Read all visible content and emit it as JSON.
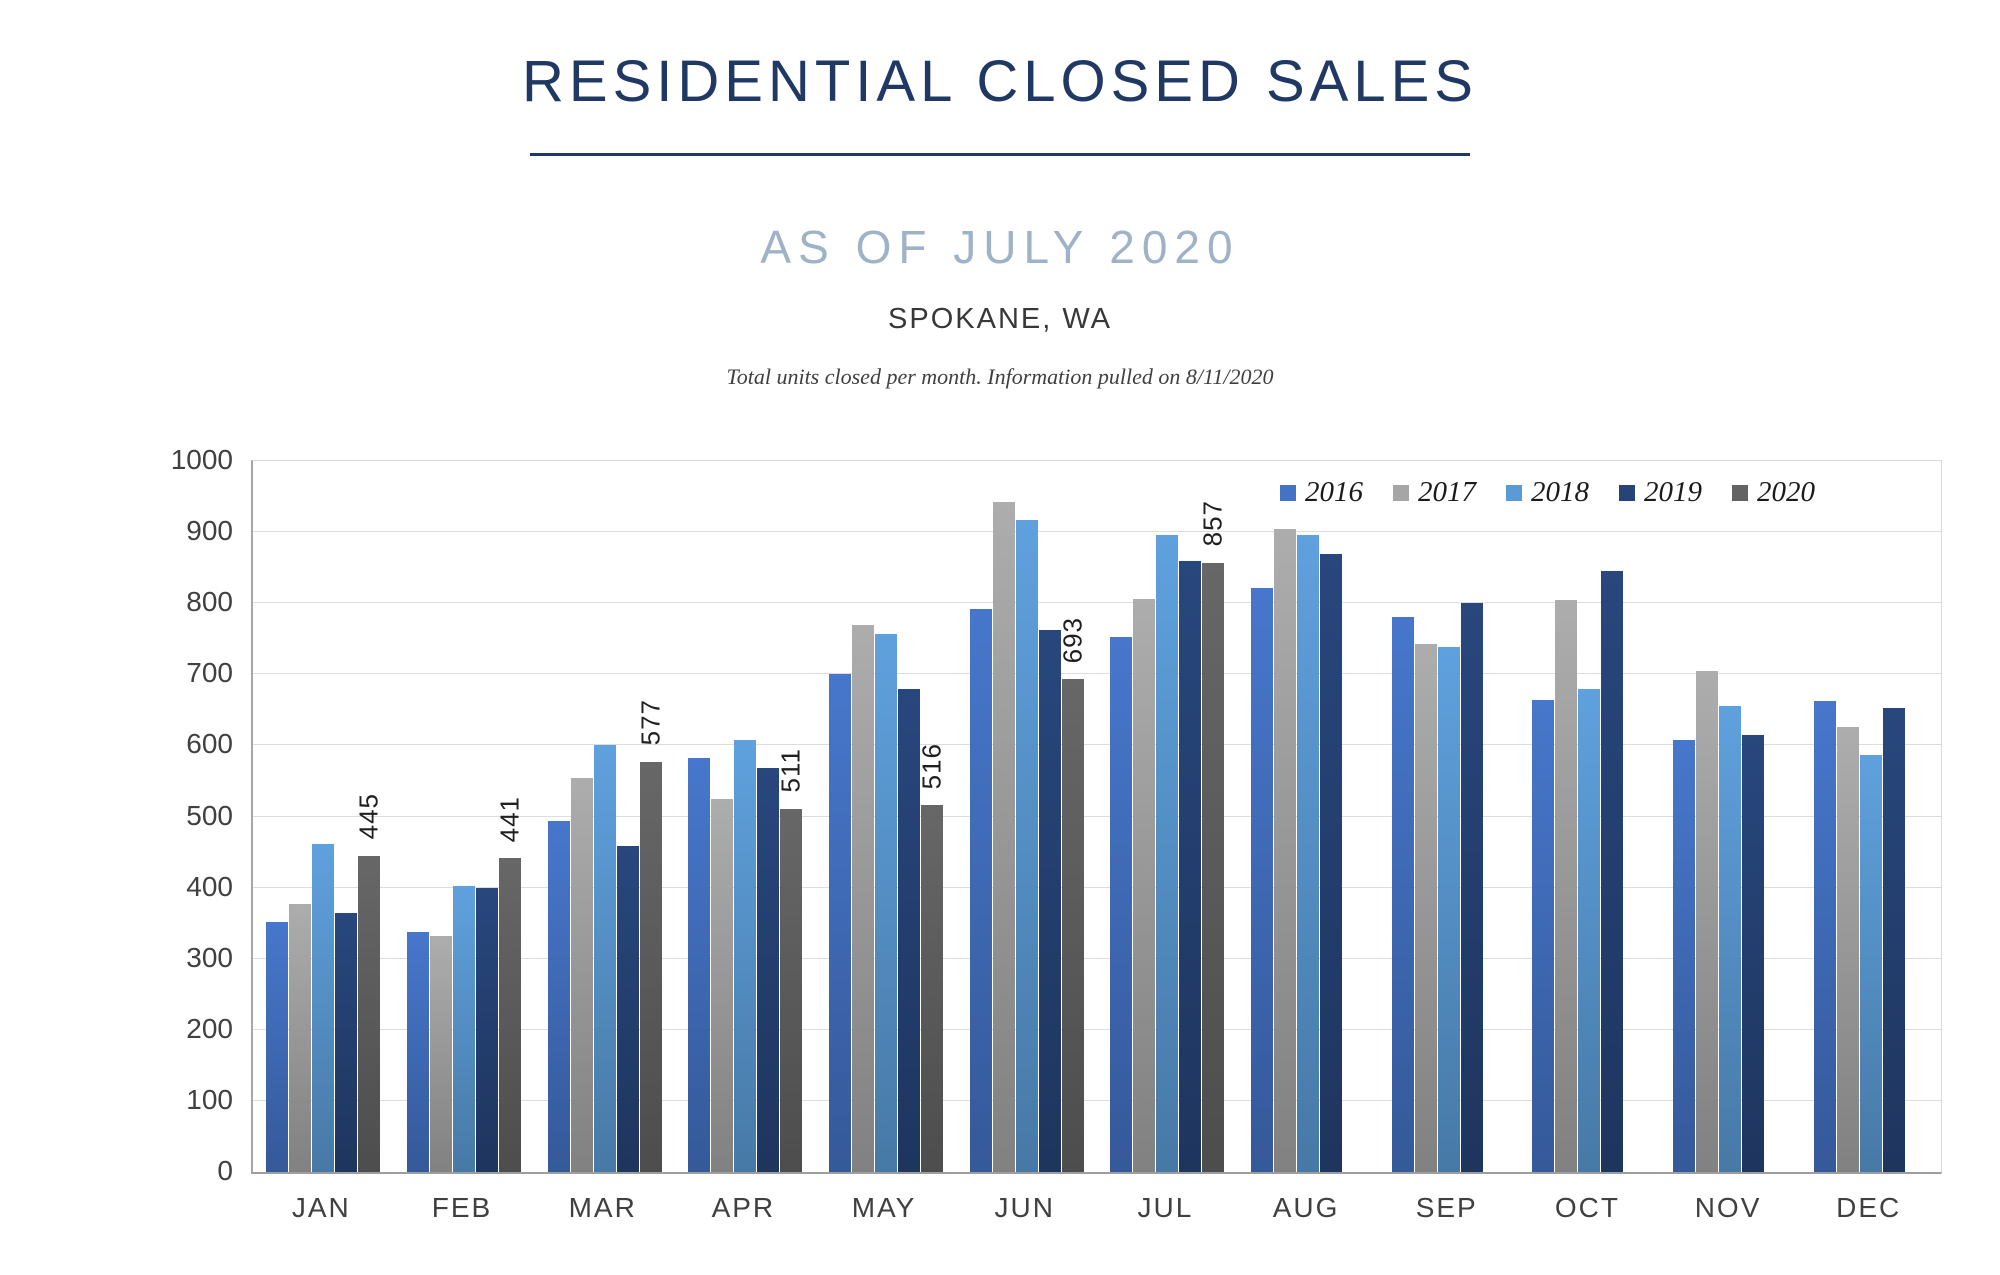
{
  "chart_data": {
    "type": "bar",
    "title": "RESIDENTIAL CLOSED SALES",
    "subtitle": "AS OF JULY 2020",
    "location": "SPOKANE, WA",
    "note": "Total units closed per month.  Information pulled on 8/11/2020",
    "categories": [
      "JAN",
      "FEB",
      "MAR",
      "APR",
      "MAY",
      "JUN",
      "JUL",
      "AUG",
      "SEP",
      "OCT",
      "NOV",
      "DEC"
    ],
    "series": [
      {
        "name": "2016",
        "color": "#4472C4",
        "show_data_labels": false,
        "values": [
          351,
          337,
          494,
          583,
          701,
          792,
          752,
          821,
          781,
          664,
          607,
          663
        ]
      },
      {
        "name": "2017",
        "color": "#A6A6A6",
        "show_data_labels": false,
        "values": [
          377,
          332,
          554,
          524,
          769,
          943,
          806,
          904,
          742,
          804,
          705,
          626
        ]
      },
      {
        "name": "2018",
        "color": "#5B9BD5",
        "show_data_labels": false,
        "values": [
          462,
          402,
          601,
          607,
          757,
          917,
          896,
          896,
          738,
          679,
          655,
          587
        ]
      },
      {
        "name": "2019",
        "color": "#264478",
        "show_data_labels": false,
        "values": [
          365,
          399,
          459,
          568,
          680,
          762,
          859,
          869,
          800,
          845,
          614,
          652
        ]
      },
      {
        "name": "2020",
        "color": "#636363",
        "show_data_labels": true,
        "values": [
          445,
          441,
          577,
          511,
          516,
          693,
          857,
          null,
          null,
          null,
          null,
          null
        ]
      }
    ],
    "ylim": [
      0,
      1000
    ],
    "ytick_interval": 100,
    "grid": true,
    "legend_position": "top-right",
    "data_label_rotation": -90
  },
  "colors": {
    "title": "#1F3864",
    "subtitle": "#9FB3C8",
    "axis_text": "#404040",
    "gridline": "#DDDDDD",
    "axis_line": "#9E9E9E",
    "data_label": "#1F1F1F"
  }
}
